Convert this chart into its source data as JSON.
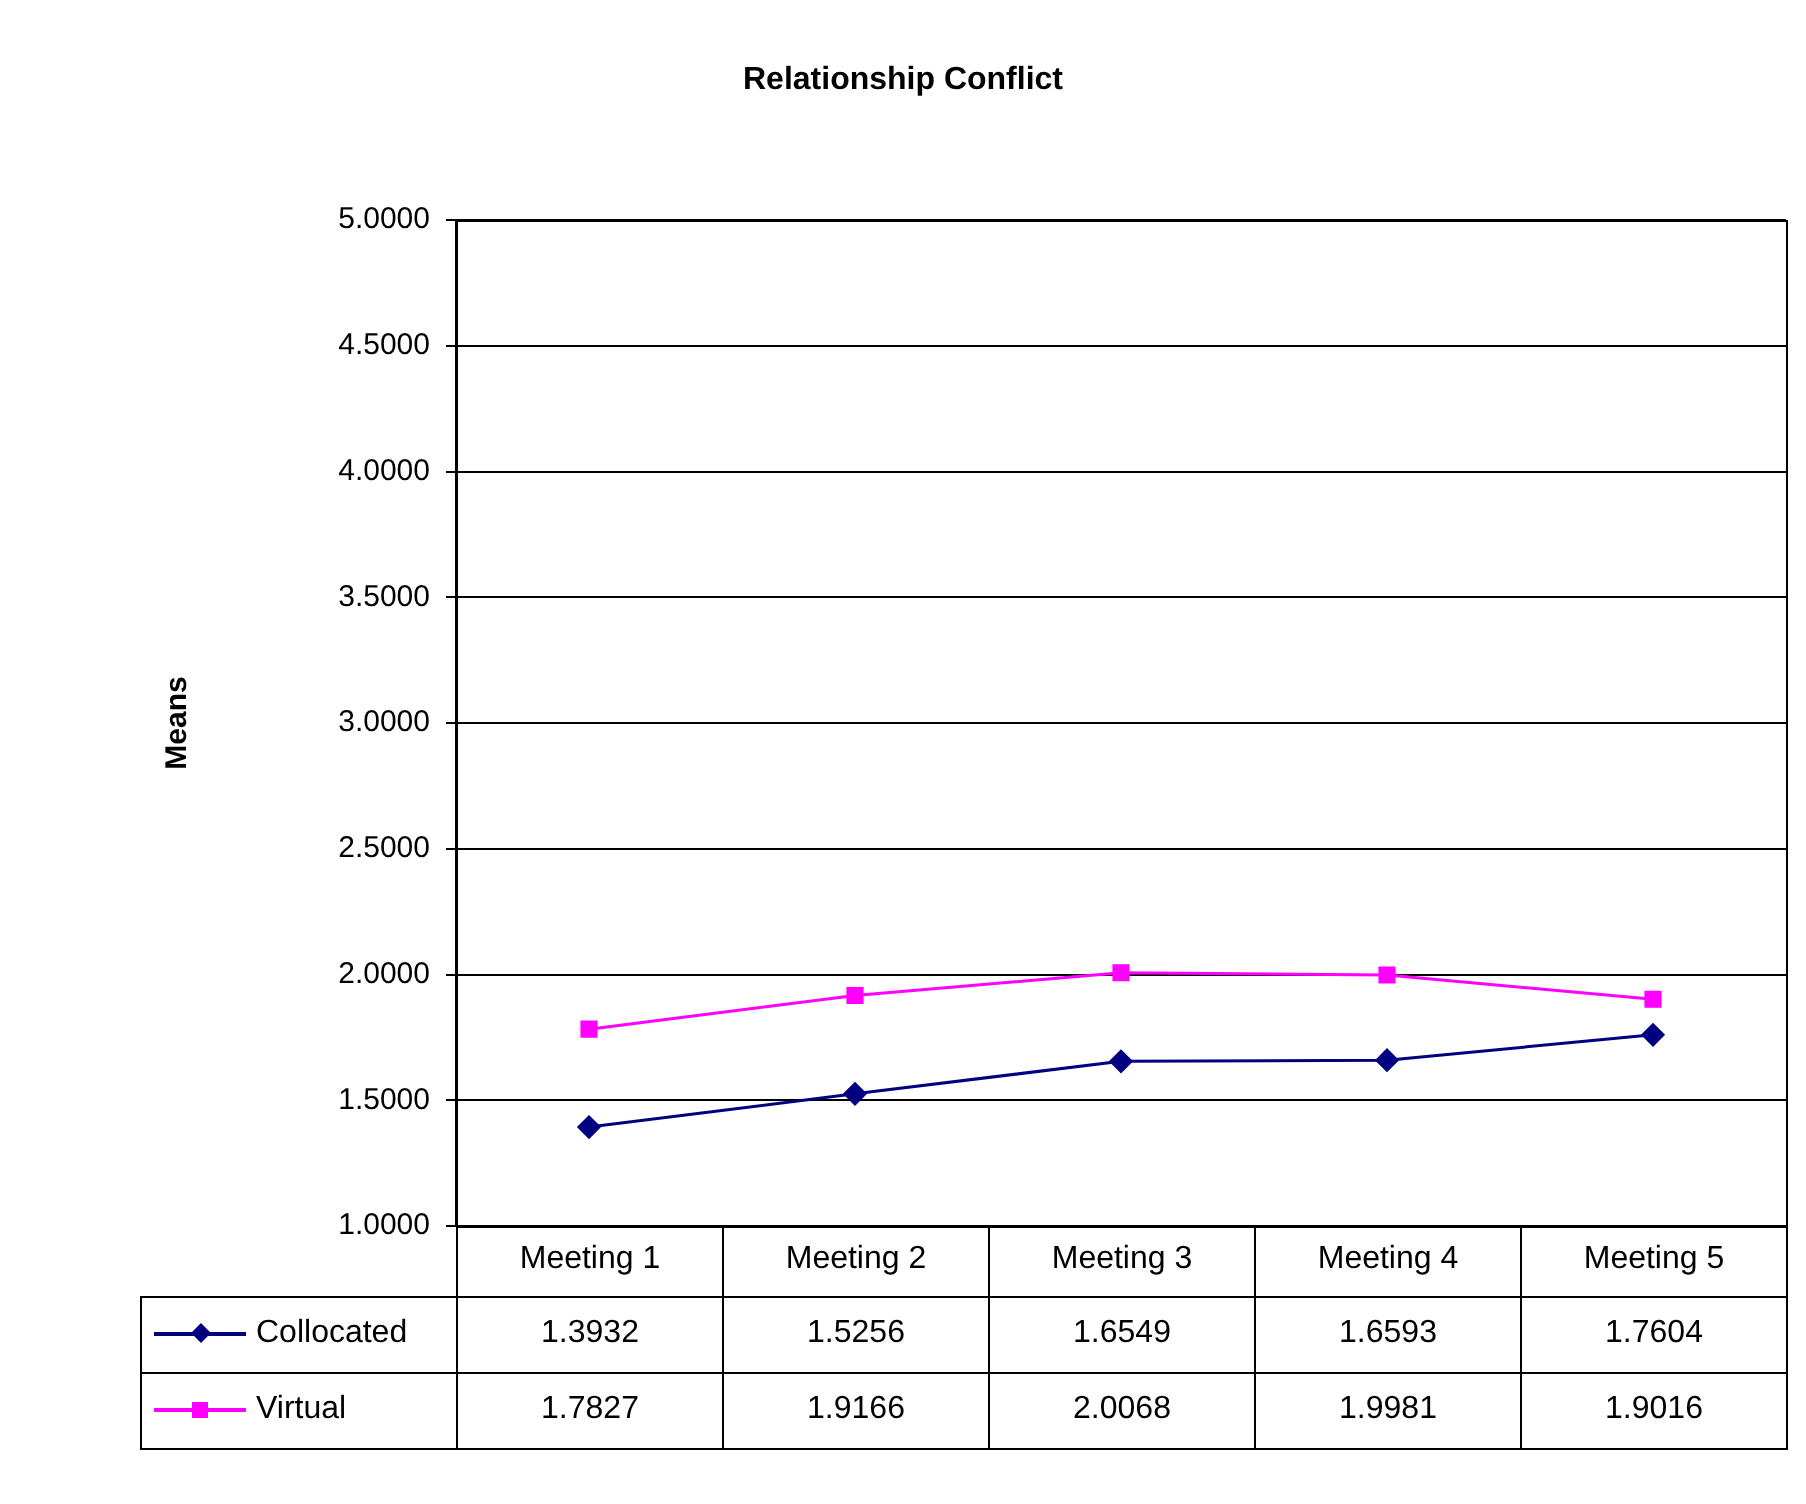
{
  "chart_data": {
    "type": "line",
    "title": "Relationship Conflict",
    "ylabel": "Means",
    "categories": [
      "Meeting 1",
      "Meeting 2",
      "Meeting 3",
      "Meeting 4",
      "Meeting 5"
    ],
    "series": [
      {
        "name": "Collocated",
        "color": "#000080",
        "marker": "diamond",
        "values": [
          1.3932,
          1.5256,
          1.6549,
          1.6593,
          1.7604
        ]
      },
      {
        "name": "Virtual",
        "color": "#ff00ff",
        "marker": "square",
        "values": [
          1.7827,
          1.9166,
          2.0068,
          1.9981,
          1.9016
        ]
      }
    ],
    "ylim": [
      1,
      5
    ],
    "yticks": [
      {
        "value": 1,
        "label": "1.0000"
      },
      {
        "value": 1.5,
        "label": "1.5000"
      },
      {
        "value": 2,
        "label": "2.0000"
      },
      {
        "value": 2.5,
        "label": "2.5000"
      },
      {
        "value": 3,
        "label": "3.0000"
      },
      {
        "value": 3.5,
        "label": "3.5000"
      },
      {
        "value": 4,
        "label": "4.0000"
      },
      {
        "value": 4.5,
        "label": "4.5000"
      },
      {
        "value": 5,
        "label": "5.0000"
      }
    ],
    "grid": "y",
    "legend": "bottom",
    "data_labels": true,
    "line_style": "solid"
  }
}
